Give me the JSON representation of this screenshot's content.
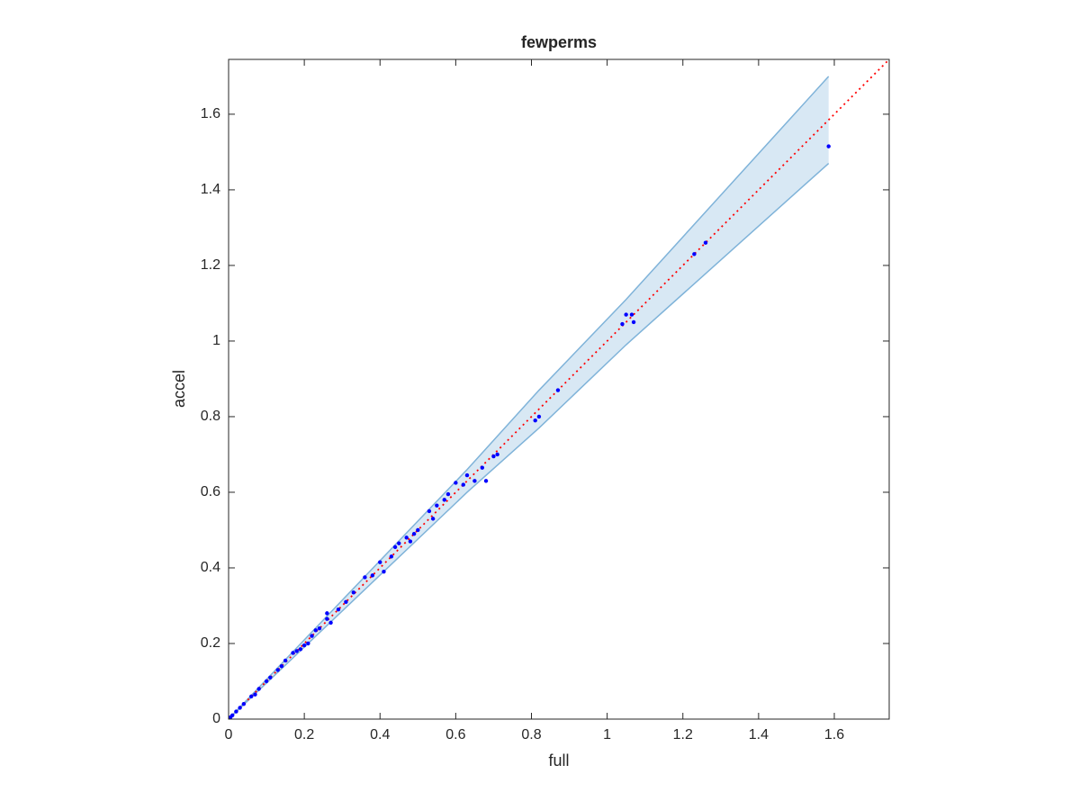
{
  "chart_data": {
    "type": "scatter",
    "title": "fewperms",
    "x_label": "full",
    "y_label": "accel",
    "x": [
      0.005,
      0.01,
      0.02,
      0.03,
      0.04,
      0.06,
      0.07,
      0.08,
      0.1,
      0.11,
      0.13,
      0.14,
      0.15,
      0.17,
      0.18,
      0.19,
      0.2,
      0.21,
      0.22,
      0.23,
      0.24,
      0.26,
      0.26,
      0.27,
      0.29,
      0.31,
      0.33,
      0.36,
      0.38,
      0.4,
      0.41,
      0.43,
      0.44,
      0.45,
      0.47,
      0.48,
      0.49,
      0.5,
      0.53,
      0.54,
      0.55,
      0.57,
      0.58,
      0.6,
      0.62,
      0.63,
      0.65,
      0.67,
      0.68,
      0.7,
      0.71,
      0.81,
      0.82,
      0.87,
      1.04,
      1.05,
      1.065,
      1.07,
      1.23,
      1.26,
      1.585
    ],
    "values": [
      0.005,
      0.01,
      0.02,
      0.03,
      0.04,
      0.06,
      0.065,
      0.08,
      0.1,
      0.11,
      0.13,
      0.14,
      0.155,
      0.175,
      0.18,
      0.185,
      0.195,
      0.2,
      0.22,
      0.235,
      0.24,
      0.265,
      0.28,
      0.255,
      0.29,
      0.31,
      0.335,
      0.375,
      0.38,
      0.415,
      0.39,
      0.43,
      0.455,
      0.465,
      0.48,
      0.47,
      0.49,
      0.5,
      0.55,
      0.53,
      0.565,
      0.58,
      0.595,
      0.625,
      0.62,
      0.645,
      0.63,
      0.665,
      0.63,
      0.695,
      0.7,
      0.79,
      0.8,
      0.87,
      1.045,
      1.07,
      1.07,
      1.05,
      1.23,
      1.26,
      1.515
    ],
    "color": "#0000ff",
    "band": {
      "x": [
        0,
        0.63,
        0.82,
        1.05,
        1.585
      ],
      "upper": [
        0,
        0.66,
        0.87,
        1.11,
        1.7
      ],
      "lower": [
        0,
        0.6,
        0.77,
        0.99,
        1.47
      ],
      "color": "#7fb3d9"
    },
    "reference_line": {
      "x": [
        0,
        1.745
      ],
      "y": [
        0,
        1.745
      ],
      "color": "#ff0000"
    },
    "xlim": [
      0,
      1.745
    ],
    "ylim": [
      0,
      1.745
    ],
    "xticks": [
      0,
      0.2,
      0.4,
      0.6,
      0.8,
      1,
      1.2,
      1.4,
      1.6
    ],
    "yticks": [
      0,
      0.2,
      0.4,
      0.6,
      0.8,
      1,
      1.2,
      1.4,
      1.6
    ],
    "grid": false
  }
}
